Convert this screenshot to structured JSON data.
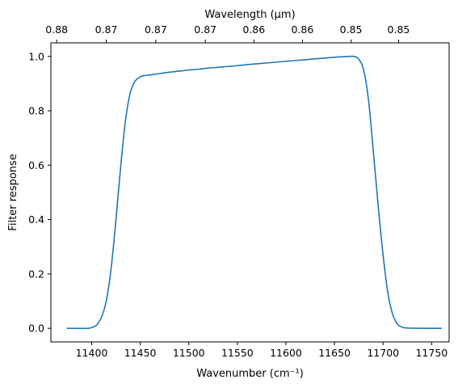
{
  "chart_data": {
    "type": "line",
    "xlabel": "Wavenumber (cm⁻¹)",
    "ylabel": "Filter response",
    "top_xlabel": "Wavelength (μm)",
    "xlim": [
      11358,
      11768
    ],
    "ylim": [
      -0.05,
      1.05
    ],
    "x_ticks": [
      11400,
      11450,
      11500,
      11550,
      11600,
      11650,
      11700,
      11750
    ],
    "x_tick_labels": [
      "11400",
      "11450",
      "11500",
      "11550",
      "11600",
      "11650",
      "11700",
      "11750"
    ],
    "y_ticks": [
      0.0,
      0.2,
      0.4,
      0.6,
      0.8,
      1.0
    ],
    "y_tick_labels": [
      "0.0",
      "0.2",
      "0.4",
      "0.6",
      "0.8",
      "1.0"
    ],
    "top_ticks": [
      11364,
      11415,
      11466,
      11517,
      11567,
      11617,
      11667,
      11716
    ],
    "top_tick_labels": [
      "0.88",
      "0.87",
      "0.87",
      "0.87",
      "0.86",
      "0.86",
      "0.85",
      "0.85"
    ],
    "grid": false,
    "series": [
      {
        "color": "#1f77b4",
        "x": [
          11375,
          11395,
          11400,
          11405,
          11410,
          11415,
          11420,
          11425,
          11430,
          11435,
          11440,
          11445,
          11450,
          11455,
          11460,
          11470,
          11480,
          11490,
          11500,
          11510,
          11520,
          11530,
          11540,
          11550,
          11560,
          11570,
          11580,
          11590,
          11600,
          11610,
          11620,
          11630,
          11640,
          11650,
          11660,
          11665,
          11670,
          11675,
          11680,
          11685,
          11690,
          11695,
          11700,
          11705,
          11710,
          11715,
          11720,
          11725,
          11740,
          11760
        ],
        "y": [
          0.0,
          0.0,
          0.003,
          0.012,
          0.04,
          0.1,
          0.22,
          0.4,
          0.6,
          0.77,
          0.87,
          0.91,
          0.925,
          0.93,
          0.932,
          0.937,
          0.942,
          0.946,
          0.95,
          0.953,
          0.957,
          0.96,
          0.963,
          0.966,
          0.97,
          0.973,
          0.976,
          0.979,
          0.982,
          0.985,
          0.988,
          0.991,
          0.994,
          0.997,
          0.999,
          1.0,
          1.0,
          0.99,
          0.95,
          0.84,
          0.65,
          0.45,
          0.27,
          0.13,
          0.05,
          0.015,
          0.004,
          0.001,
          0.0,
          0.0
        ]
      }
    ]
  }
}
